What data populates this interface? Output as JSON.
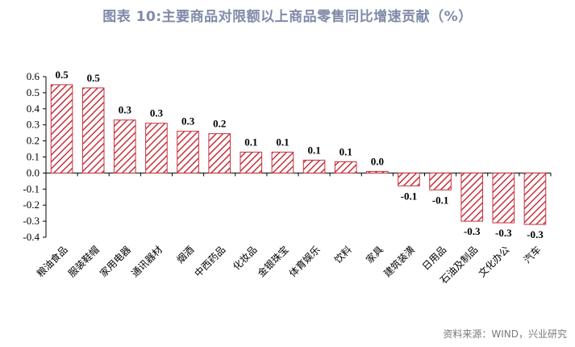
{
  "title": "图表 10:主要商品对限额以上商品零售同比增速贡献（%）",
  "source": "资料来源：WIND，兴业研究",
  "colors": {
    "bar_stroke": "#c8303c",
    "bar_fill_bg": "#ffffff",
    "title": "#7f8aa8"
  },
  "chart_data": {
    "type": "bar",
    "title": "图表 10:主要商品对限额以上商品零售同比增速贡献（%）",
    "xlabel": "",
    "ylabel": "",
    "ylim": [
      -0.4,
      0.6
    ],
    "yticks": [
      "0.6",
      "0.5",
      "0.4",
      "0.3",
      "0.2",
      "0.1",
      "0.0",
      "-0.1",
      "-0.2",
      "-0.3",
      "-0.4"
    ],
    "ytick_values": [
      0.6,
      0.5,
      0.4,
      0.3,
      0.2,
      0.1,
      0.0,
      -0.1,
      -0.2,
      -0.3,
      -0.4
    ],
    "categories": [
      "粮油食品",
      "服装鞋帽",
      "家用电器",
      "通讯器材",
      "烟酒",
      "中西药品",
      "化妆品",
      "金银珠宝",
      "体育娱乐",
      "饮料",
      "家具",
      "建筑装潢",
      "日用品",
      "石油及制品",
      "文化办公",
      "汽车"
    ],
    "values": [
      0.55,
      0.53,
      0.33,
      0.31,
      0.26,
      0.245,
      0.13,
      0.13,
      0.08,
      0.07,
      0.01,
      -0.08,
      -0.105,
      -0.3,
      -0.31,
      -0.32
    ],
    "data_labels": [
      "0.5",
      "0.5",
      "0.3",
      "0.3",
      "0.3",
      "0.2",
      "0.1",
      "0.1",
      "0.1",
      "0.1",
      "0.0",
      "-0.1",
      "-0.1",
      "-0.3",
      "-0.3",
      "-0.3"
    ],
    "grid": false,
    "legend": "none"
  }
}
